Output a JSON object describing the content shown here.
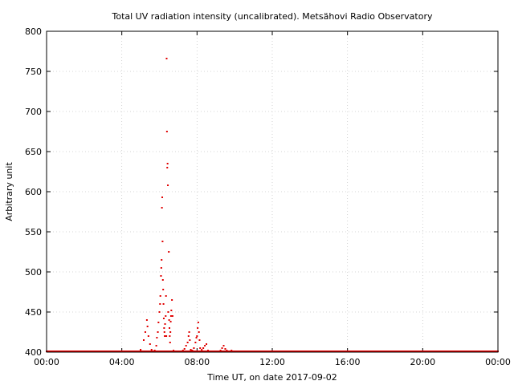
{
  "chart_data": {
    "type": "scatter",
    "title": "Total UV radiation intensity (uncalibrated). Metsähovi Radio Observatory",
    "xlabel": "Time UT, on date 2017-09-02",
    "ylabel": "Arbitrary unit",
    "xlim": [
      "00:00",
      "24:00"
    ],
    "ylim": [
      400,
      800
    ],
    "x_ticks": [
      "00:00",
      "04:00",
      "08:00",
      "12:00",
      "16:00",
      "20:00",
      "00:00"
    ],
    "y_ticks": [
      400,
      450,
      500,
      550,
      600,
      650,
      700,
      750,
      800
    ],
    "grid": true,
    "marker_color": "#e00000",
    "baseline": {
      "value": 401,
      "from": "00:00",
      "to": "24:00"
    },
    "series": [
      {
        "points": [
          [
            "05:00",
            403
          ],
          [
            "05:10",
            415
          ],
          [
            "05:15",
            425
          ],
          [
            "05:20",
            440
          ],
          [
            "05:22",
            432
          ],
          [
            "05:25",
            420
          ],
          [
            "05:30",
            410
          ],
          [
            "05:35",
            403
          ],
          [
            "05:45",
            402
          ],
          [
            "05:50",
            408
          ],
          [
            "05:52",
            418
          ],
          [
            "05:55",
            425
          ],
          [
            "05:57",
            437
          ],
          [
            "06:00",
            450
          ],
          [
            "06:02",
            460
          ],
          [
            "06:03",
            470
          ],
          [
            "06:05",
            495
          ],
          [
            "06:06",
            505
          ],
          [
            "06:07",
            515
          ],
          [
            "06:08",
            580
          ],
          [
            "06:09",
            593
          ],
          [
            "06:10",
            538
          ],
          [
            "06:11",
            490
          ],
          [
            "06:12",
            478
          ],
          [
            "06:13",
            460
          ],
          [
            "06:14",
            442
          ],
          [
            "06:15",
            430
          ],
          [
            "06:16",
            425
          ],
          [
            "06:17",
            420
          ],
          [
            "06:18",
            435
          ],
          [
            "06:20",
            445
          ],
          [
            "06:21",
            470
          ],
          [
            "06:22",
            420
          ],
          [
            "06:23",
            766
          ],
          [
            "06:24",
            675
          ],
          [
            "06:25",
            630
          ],
          [
            "06:26",
            635
          ],
          [
            "06:27",
            608
          ],
          [
            "06:28",
            450
          ],
          [
            "06:30",
            525
          ],
          [
            "06:31",
            440
          ],
          [
            "06:32",
            430
          ],
          [
            "06:33",
            420
          ],
          [
            "06:34",
            412
          ],
          [
            "06:35",
            425
          ],
          [
            "06:36",
            438
          ],
          [
            "06:37",
            445
          ],
          [
            "06:38",
            452
          ],
          [
            "06:40",
            465
          ],
          [
            "06:42",
            445
          ],
          [
            "06:45",
            402
          ],
          [
            "06:50",
            401
          ],
          [
            "07:15",
            402
          ],
          [
            "07:20",
            404
          ],
          [
            "07:25",
            408
          ],
          [
            "07:30",
            412
          ],
          [
            "07:33",
            420
          ],
          [
            "07:35",
            425
          ],
          [
            "07:37",
            415
          ],
          [
            "07:40",
            403
          ],
          [
            "07:45",
            402
          ],
          [
            "07:50",
            405
          ],
          [
            "07:55",
            412
          ],
          [
            "07:58",
            418
          ],
          [
            "08:00",
            420
          ],
          [
            "08:02",
            430
          ],
          [
            "08:04",
            437
          ],
          [
            "08:06",
            425
          ],
          [
            "08:08",
            415
          ],
          [
            "08:10",
            405
          ],
          [
            "08:15",
            403
          ],
          [
            "08:20",
            405
          ],
          [
            "08:25",
            408
          ],
          [
            "08:30",
            410
          ],
          [
            "08:35",
            402
          ],
          [
            "09:15",
            402
          ],
          [
            "09:20",
            405
          ],
          [
            "09:25",
            408
          ],
          [
            "09:30",
            404
          ],
          [
            "09:35",
            402
          ],
          [
            "09:50",
            402
          ]
        ]
      }
    ]
  }
}
